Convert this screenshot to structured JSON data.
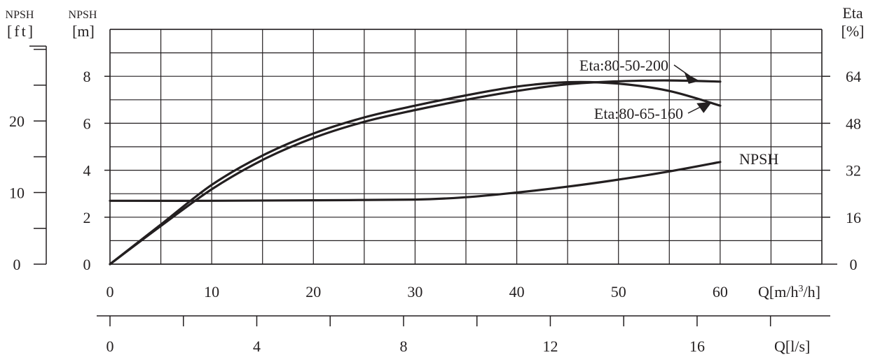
{
  "chart_data": {
    "type": "line",
    "ink_color": "#231f20",
    "grid": true,
    "x": {
      "label": "Q",
      "unit": "m³/h",
      "range": [
        0,
        70
      ],
      "ticks": [
        0,
        10,
        20,
        30,
        40,
        50,
        60
      ],
      "minor_step": 5
    },
    "x2": {
      "label": "Q",
      "unit": "l/s",
      "range": [
        0,
        19.4
      ],
      "ticks": [
        0,
        4,
        8,
        12,
        16
      ],
      "minor_step": 2
    },
    "y_left": {
      "label": "NPSH",
      "unit": "m",
      "range": [
        0,
        10
      ],
      "ticks": [
        0,
        2,
        4,
        6,
        8
      ]
    },
    "y_left2": {
      "label": "NPSH",
      "unit": "ft",
      "range": [
        0,
        32.8
      ],
      "ticks": [
        0,
        10,
        20
      ],
      "minor_step": 5
    },
    "y_right": {
      "label": "Eta",
      "unit": "%",
      "range": [
        0,
        80
      ],
      "ticks": [
        0,
        16,
        32,
        48,
        64
      ]
    },
    "series": [
      {
        "name": "Eta:80-50-200",
        "axis": "right",
        "weight": "bold",
        "points": [
          [
            0,
            0
          ],
          [
            5,
            13
          ],
          [
            10,
            25.5
          ],
          [
            15,
            35.5
          ],
          [
            20,
            43
          ],
          [
            25,
            48.5
          ],
          [
            30,
            52.5
          ],
          [
            35,
            56
          ],
          [
            40,
            59
          ],
          [
            45,
            61.3
          ],
          [
            50,
            62.3
          ],
          [
            55,
            62.6
          ],
          [
            60,
            62.2
          ]
        ]
      },
      {
        "name": "Eta:80-65-160",
        "axis": "right",
        "weight": "bold",
        "points": [
          [
            0,
            0
          ],
          [
            5,
            13.5
          ],
          [
            10,
            27
          ],
          [
            15,
            37
          ],
          [
            20,
            44.5
          ],
          [
            25,
            50
          ],
          [
            30,
            54
          ],
          [
            35,
            57.5
          ],
          [
            40,
            60.5
          ],
          [
            45,
            62
          ],
          [
            50,
            61.5
          ],
          [
            55,
            59
          ],
          [
            60,
            54
          ]
        ]
      },
      {
        "name": "NPSH",
        "axis": "left",
        "weight": "bold",
        "points": [
          [
            0,
            2.7
          ],
          [
            10,
            2.7
          ],
          [
            20,
            2.72
          ],
          [
            30,
            2.75
          ],
          [
            35,
            2.85
          ],
          [
            40,
            3.05
          ],
          [
            45,
            3.3
          ],
          [
            50,
            3.6
          ],
          [
            55,
            3.95
          ],
          [
            60,
            4.35
          ]
        ]
      }
    ]
  }
}
